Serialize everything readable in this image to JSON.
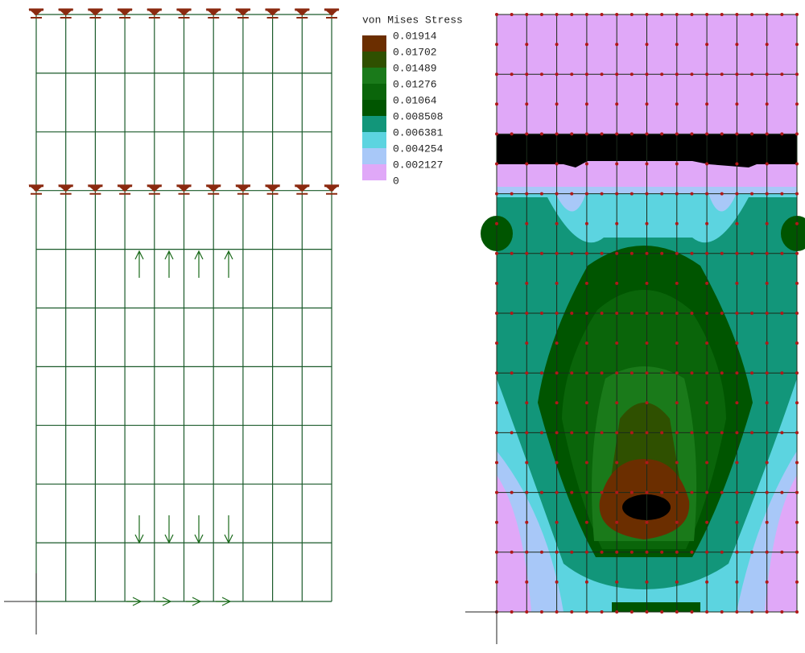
{
  "legend": {
    "title": "von Mises Stress",
    "entries": [
      {
        "label": "0.01914",
        "color": "#6b2e00"
      },
      {
        "label": "0.01702",
        "color": "#2f5000"
      },
      {
        "label": "0.01489",
        "color": "#1a7a1a"
      },
      {
        "label": "0.01276",
        "color": "#0a650a"
      },
      {
        "label": "0.01064",
        "color": "#005500"
      },
      {
        "label": "0.008508",
        "color": "#12967a"
      },
      {
        "label": "0.006381",
        "color": "#5cd4e0"
      },
      {
        "label": "0.004254",
        "color": "#a8c8f8"
      },
      {
        "label": "0.002127",
        "color": "#e0a8f8"
      },
      {
        "label": "0"
      }
    ]
  }
}
